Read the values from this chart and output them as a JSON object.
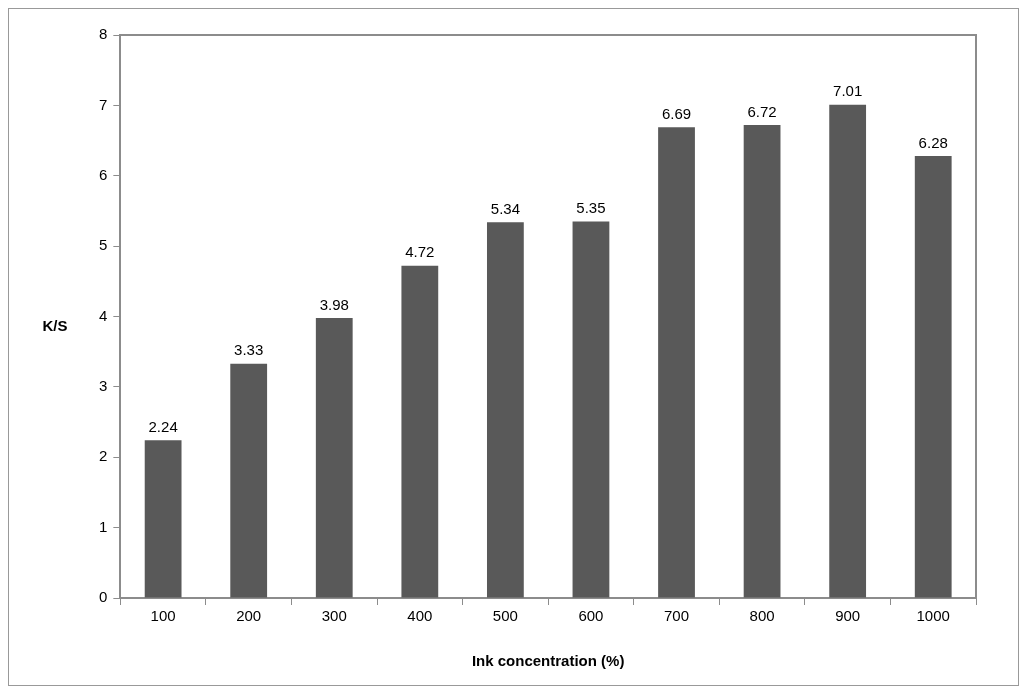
{
  "chart_data": {
    "type": "bar",
    "xlabel": "Ink concentration (%)",
    "ylabel": "K/S",
    "categories": [
      "100",
      "200",
      "300",
      "400",
      "500",
      "600",
      "700",
      "800",
      "900",
      "1000"
    ],
    "values": [
      2.24,
      3.33,
      3.98,
      4.72,
      5.34,
      5.35,
      6.69,
      6.72,
      7.01,
      6.28
    ],
    "color": "#595959",
    "ylim": [
      0,
      8
    ],
    "yticks": [
      0,
      1,
      2,
      3,
      4,
      5,
      6,
      7,
      8
    ],
    "grid": false,
    "legend": false,
    "data_labels": true
  }
}
